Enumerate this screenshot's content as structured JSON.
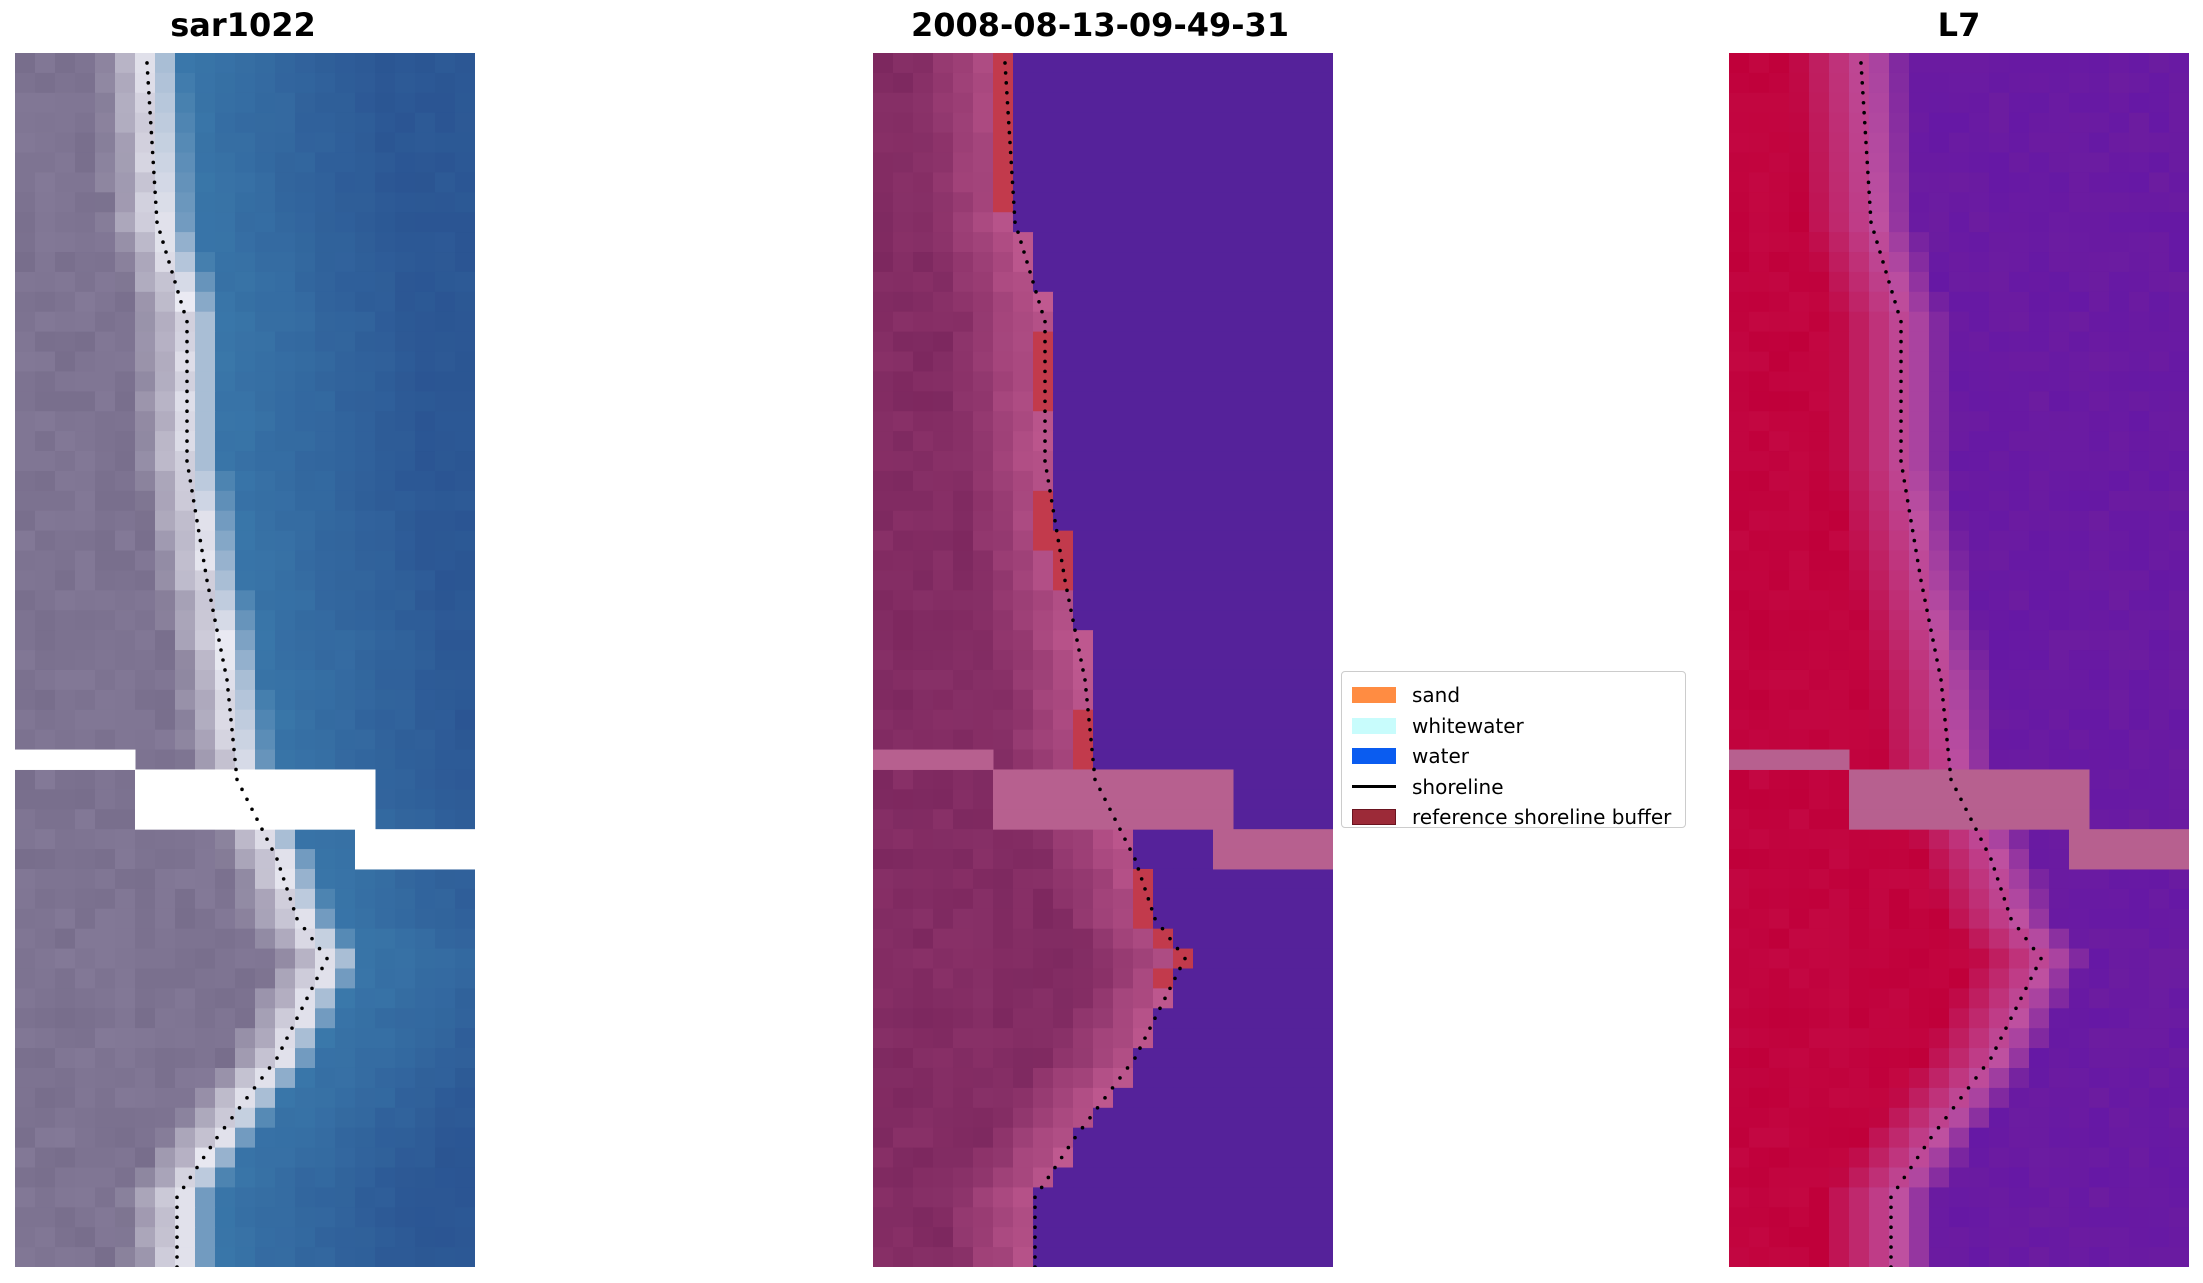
{
  "panels": [
    {
      "title": "sar1022",
      "kind": "rgb"
    },
    {
      "title": "2008-08-13-09-49-31",
      "kind": "classified"
    },
    {
      "title": "L7",
      "kind": "index"
    }
  ],
  "legend": {
    "items": [
      {
        "label": "sand",
        "type": "patch",
        "color": "#ff8c42"
      },
      {
        "label": "whitewater",
        "type": "patch",
        "color": "#c8fcfc"
      },
      {
        "label": "water",
        "type": "patch",
        "color": "#0a5cf0"
      },
      {
        "label": "shoreline",
        "type": "line",
        "color": "#000000"
      },
      {
        "label": "reference shoreline buffer",
        "type": "patch",
        "color": "#9c2a38",
        "border": "#6a1420"
      }
    ]
  },
  "colors": {
    "nodata_stripe": "#b7608f",
    "classified_water": "#55229a",
    "classified_buffer": "#c23a4c",
    "index_land": "#c0003a",
    "index_water": "#6c1ca0"
  }
}
